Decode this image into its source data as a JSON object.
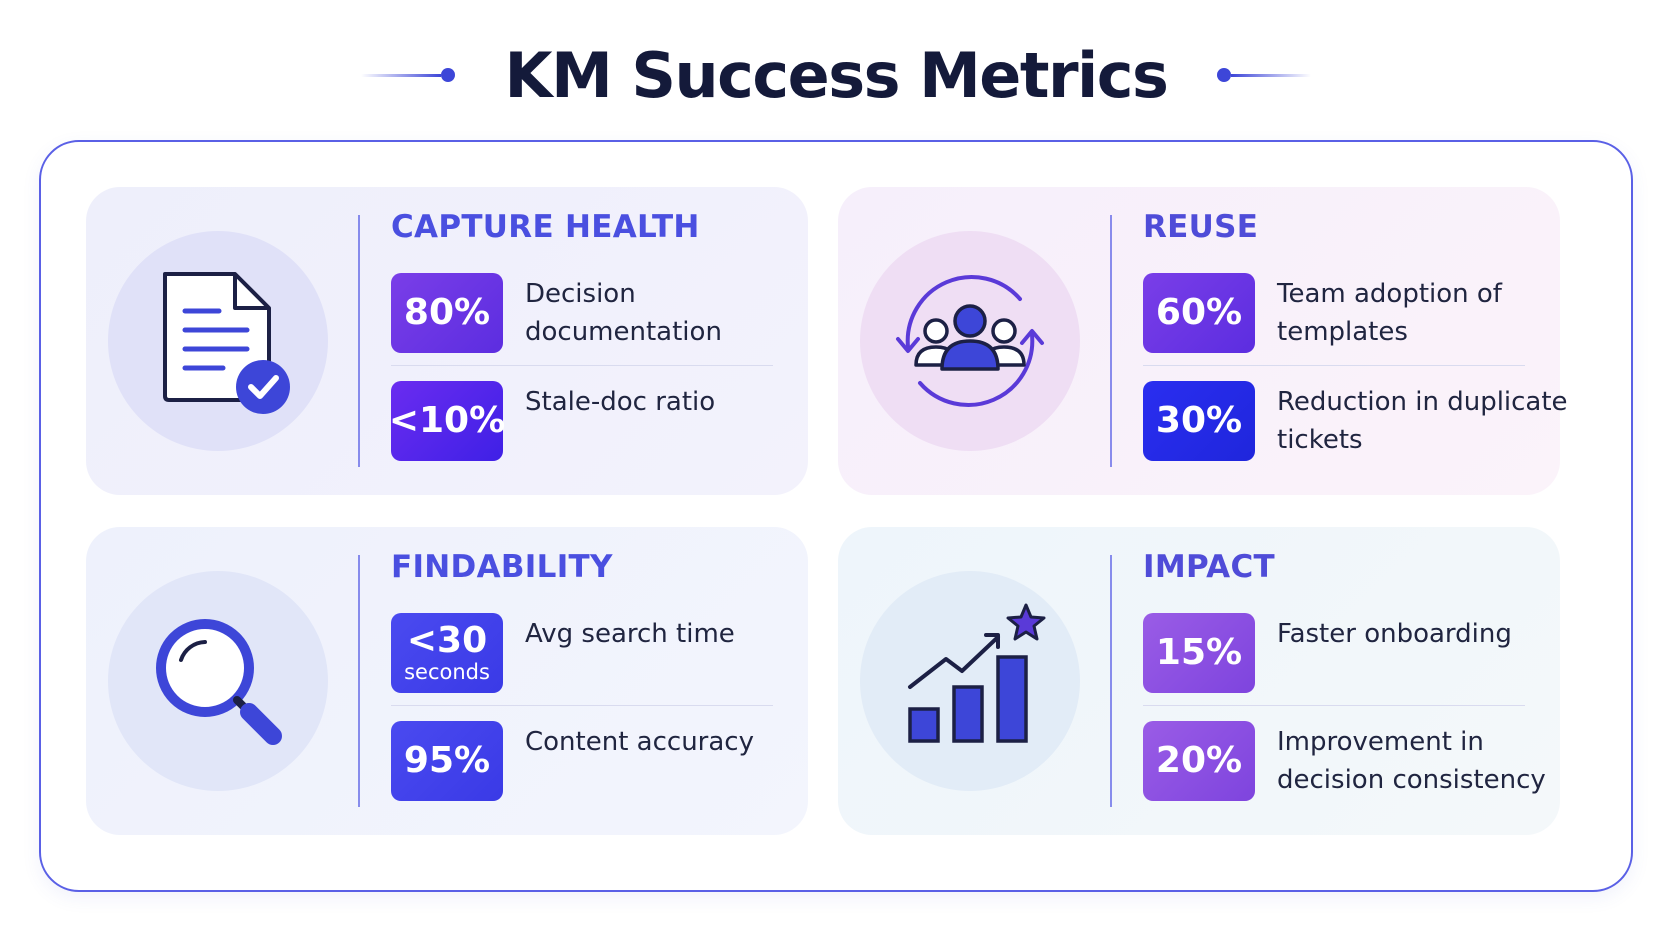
{
  "title": "KM Success Metrics",
  "categories": [
    {
      "title": "CAPTURE HEALTH",
      "icon": "document-check-icon",
      "metrics": [
        {
          "value": "80%",
          "label": "Decision documentation"
        },
        {
          "value": "<10%",
          "label": "Stale-doc ratio"
        }
      ]
    },
    {
      "title": "REUSE",
      "icon": "team-cycle-icon",
      "metrics": [
        {
          "value": "60%",
          "label": "Team adoption of templates"
        },
        {
          "value": "30%",
          "label": "Reduction in duplicate tickets"
        }
      ]
    },
    {
      "title": "FINDABILITY",
      "icon": "magnifier-icon",
      "metrics": [
        {
          "value": "<30",
          "sub": "seconds",
          "label": "Avg search time"
        },
        {
          "value": "95%",
          "label": "Content accuracy"
        }
      ]
    },
    {
      "title": "IMPACT",
      "icon": "growth-chart-star-icon",
      "metrics": [
        {
          "value": "15%",
          "label": "Faster onboarding"
        },
        {
          "value": "20%",
          "label": "Improvement in decision consistency"
        }
      ]
    }
  ],
  "colors": {
    "accent": "#4a4fe0",
    "title": "#141a3a",
    "frame": "#5a60e6"
  }
}
